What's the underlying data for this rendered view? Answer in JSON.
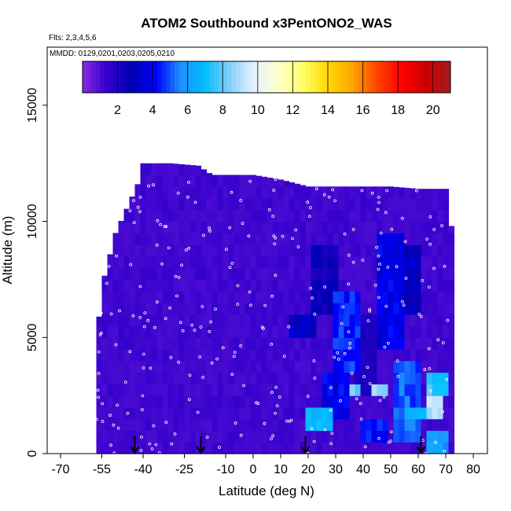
{
  "chart_data": {
    "type": "heatmap",
    "title": "ATOM2 Southbound x3PentONO2_WAS",
    "subtitle_flights": "Flts: 2,3,4,5,6",
    "subtitle_dates": "MMDD: 0129,0201,0203,0205,0210",
    "xlabel": "Latitude (deg N)",
    "ylabel": "Altitude (m)",
    "xlim": [
      -70,
      80
    ],
    "ylim": [
      0,
      17500
    ],
    "x_ticks": [
      -70,
      -55,
      -40,
      -25,
      -10,
      0,
      10,
      20,
      30,
      40,
      50,
      60,
      70,
      80
    ],
    "x_tick_labels": [
      "-70",
      "-55",
      "-40",
      "-25",
      "-10",
      "0",
      "10",
      "20",
      "30",
      "40",
      "50",
      "60",
      "70",
      "80"
    ],
    "y_ticks": [
      0,
      5000,
      10000,
      15000
    ],
    "y_tick_labels": [
      "0",
      "5000",
      "10000",
      "15000"
    ],
    "colorbar": {
      "range": [
        0,
        21
      ],
      "ticks": [
        2,
        4,
        6,
        8,
        10,
        12,
        14,
        16,
        18,
        20
      ],
      "tick_labels": [
        "2",
        "4",
        "6",
        "8",
        "10",
        "12",
        "14",
        "16",
        "18",
        "20"
      ],
      "colors": [
        "#8a2be2",
        "#3300cc",
        "#0000b0",
        "#0000ff",
        "#1e90ff",
        "#00bfff",
        "#87cefa",
        "#e6f2ff",
        "#ffffcc",
        "#ffff66",
        "#ffd700",
        "#ffa500",
        "#ff4500",
        "#ff0000",
        "#cc0000",
        "#a51c1c"
      ]
    },
    "background_value": 1.2,
    "envelope": {
      "lat": [
        -57,
        -55,
        -50,
        -45,
        -42,
        -40,
        -30,
        -20,
        -15,
        -10,
        0,
        10,
        20,
        30,
        40,
        50,
        60,
        65,
        70,
        72
      ],
      "top": [
        4600,
        7200,
        9500,
        10800,
        11600,
        12500,
        12500,
        12400,
        12000,
        12000,
        12000,
        11800,
        11500,
        11500,
        11500,
        11500,
        11400,
        11400,
        11400,
        9800
      ]
    },
    "patches": [
      {
        "lat": [
          13,
          23
        ],
        "alt": [
          5200,
          6000
        ],
        "v": 3.0
      },
      {
        "lat": [
          22,
          32
        ],
        "alt": [
          6000,
          9000
        ],
        "v": 2.5
      },
      {
        "lat": [
          25,
          35
        ],
        "alt": [
          1500,
          3500
        ],
        "v": 4.0
      },
      {
        "lat": [
          30,
          40
        ],
        "alt": [
          3500,
          7000
        ],
        "v": 4.5
      },
      {
        "lat": [
          38,
          45
        ],
        "alt": [
          2500,
          6000
        ],
        "v": 2.0
      },
      {
        "lat": [
          45,
          55
        ],
        "alt": [
          4500,
          9500
        ],
        "v": 3.8
      },
      {
        "lat": [
          52,
          62
        ],
        "alt": [
          500,
          4000
        ],
        "v": 5.0
      },
      {
        "lat": [
          55,
          62
        ],
        "alt": [
          6000,
          9000
        ],
        "v": 3.0
      },
      {
        "lat": [
          20,
          30
        ],
        "alt": [
          1000,
          2000
        ],
        "v": 7.0
      },
      {
        "lat": [
          35,
          40
        ],
        "alt": [
          2500,
          3000
        ],
        "v": 8.0
      },
      {
        "lat": [
          44,
          50
        ],
        "alt": [
          2500,
          3000
        ],
        "v": 8.5
      },
      {
        "lat": [
          63,
          70
        ],
        "alt": [
          1500,
          2500
        ],
        "v": 9.0
      },
      {
        "lat": [
          63,
          72
        ],
        "alt": [
          2500,
          3500
        ],
        "v": 7.5
      },
      {
        "lat": [
          56,
          63
        ],
        "alt": [
          1500,
          2000
        ],
        "v": 6.5
      },
      {
        "lat": [
          40,
          50
        ],
        "alt": [
          500,
          1500
        ],
        "v": 4.2
      },
      {
        "lat": [
          64,
          71
        ],
        "alt": [
          0,
          1000
        ],
        "v": 6.0
      }
    ],
    "arrows_lat": [
      -43,
      -19,
      19,
      61
    ]
  }
}
